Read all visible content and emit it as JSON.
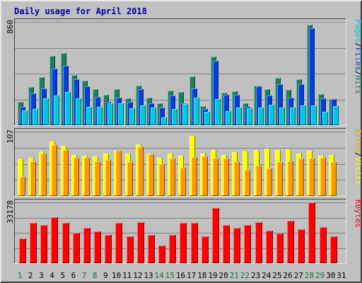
{
  "chart_data": {
    "title": "Daily usage for April 2018",
    "categories": [
      "1",
      "2",
      "3",
      "4",
      "5",
      "6",
      "7",
      "8",
      "9",
      "10",
      "11",
      "12",
      "13",
      "14",
      "15",
      "16",
      "17",
      "18",
      "19",
      "20",
      "21",
      "22",
      "23",
      "24",
      "25",
      "26",
      "27",
      "28",
      "29",
      "30",
      "31"
    ],
    "weekend_days": [
      1,
      7,
      8,
      14,
      15,
      21,
      22,
      28,
      29
    ],
    "x_label_colors": {
      "weekday": "#000000",
      "weekend": "#1a7040"
    },
    "panels": [
      {
        "type": "bar",
        "name": "hits-pages-files",
        "ymax_label": "860",
        "ylim": [
          0,
          860
        ],
        "legend": [
          {
            "text": "Pages",
            "color": "#00c8e0"
          },
          {
            "text": "/",
            "color": "#000000"
          },
          {
            "text": "Files",
            "color": "#0040e0"
          },
          {
            "text": "/",
            "color": "#000000"
          },
          {
            "text": "Hits",
            "color": "#1a8060"
          }
        ],
        "series": [
          {
            "name": "Hits",
            "color": "#1a8060",
            "values": [
              195,
              320,
              400,
              580,
              600,
              420,
              370,
              300,
              255,
              300,
              225,
              330,
              230,
              185,
              290,
              275,
              405,
              160,
              570,
              270,
              280,
              180,
              330,
              300,
              395,
              295,
              385,
              835,
              260,
              220,
              0
            ]
          },
          {
            "name": "Files",
            "color": "#0040e0",
            "values": [
              155,
              265,
              305,
              470,
              495,
              380,
              325,
              235,
              195,
              230,
              195,
              300,
              180,
              150,
              250,
              180,
              305,
              135,
              535,
              255,
              255,
              155,
              325,
              245,
              340,
              230,
              340,
              805,
              225,
              215,
              0
            ]
          },
          {
            "name": "Pages",
            "color": "#00c8e0",
            "values": [
              125,
              135,
              225,
              250,
              275,
              225,
              155,
              155,
              180,
              185,
              140,
              165,
              145,
              65,
              135,
              175,
              230,
              110,
              215,
              115,
              150,
              140,
              150,
              170,
              145,
              150,
              165,
              165,
              110,
              160,
              0
            ]
          }
        ]
      },
      {
        "type": "bar",
        "name": "visits-sites",
        "ymax_label": "107",
        "ylim": [
          0,
          107
        ],
        "legend": [
          {
            "text": "Sites",
            "color": "#ff9900"
          },
          {
            "text": "/",
            "color": "#000000"
          },
          {
            "text": "Visits",
            "color": "#ffff00"
          }
        ],
        "series": [
          {
            "name": "Visits",
            "color": "#ffff00",
            "values": [
              61,
              63,
              74,
              90,
              84,
              68,
              67,
              66,
              70,
              75,
              70,
              86,
              71,
              63,
              70,
              67,
              100,
              70,
              76,
              68,
              73,
              74,
              76,
              79,
              76,
              78,
              70,
              75,
              67,
              68,
              0
            ]
          },
          {
            "name": "Sites",
            "color": "#ff9900",
            "values": [
              32,
              58,
              71,
              85,
              77,
              63,
              64,
              58,
              60,
              75,
              57,
              81,
              69,
              53,
              62,
              47,
              65,
              66,
              62,
              62,
              56,
              43,
              51,
              46,
              56,
              58,
              62,
              62,
              63,
              56,
              0
            ]
          }
        ]
      },
      {
        "type": "bar",
        "name": "kbytes",
        "ymax_label": "33178",
        "ylim": [
          0,
          33178
        ],
        "legend": [
          {
            "text": "KBytes",
            "color": "#ff0000"
          }
        ],
        "series": [
          {
            "name": "KBytes",
            "color": "#ff0000",
            "values": [
              13600,
              21800,
              20700,
              25100,
              21900,
              16700,
              19400,
              17400,
              15600,
              22100,
              14700,
              22400,
              15500,
              9500,
              15600,
              21800,
              21800,
              14500,
              30200,
              20800,
              19100,
              21000,
              22200,
              17700,
              16200,
              23200,
              18400,
              33178,
              19700,
              14600,
              0
            ]
          }
        ]
      }
    ]
  }
}
